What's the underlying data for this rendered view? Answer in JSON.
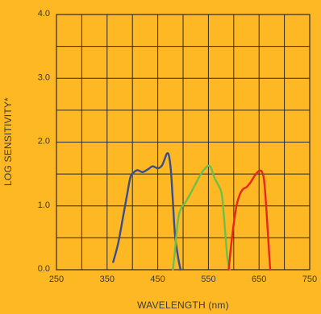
{
  "chart_data": {
    "type": "line",
    "title": "",
    "xlabel": "WAVELENGTH (nm)",
    "ylabel": "LOG SENSITIVITY*",
    "xlim": [
      250,
      750
    ],
    "ylim": [
      0,
      4
    ],
    "x_ticks": [
      "250",
      "350",
      "450",
      "550",
      "650",
      "750"
    ],
    "y_ticks": [
      "0.0",
      "1.0",
      "2.0",
      "3.0",
      "4.0"
    ],
    "grid": true,
    "background_color": "#FDB823",
    "series": [
      {
        "color": "#3B4E8C",
        "points": [
          [
            362,
            0.12
          ],
          [
            372,
            0.42
          ],
          [
            382,
            0.85
          ],
          [
            390,
            1.2
          ],
          [
            396,
            1.45
          ],
          [
            402,
            1.52
          ],
          [
            410,
            1.56
          ],
          [
            420,
            1.53
          ],
          [
            430,
            1.57
          ],
          [
            440,
            1.62
          ],
          [
            450,
            1.59
          ],
          [
            458,
            1.63
          ],
          [
            463,
            1.72
          ],
          [
            468,
            1.82
          ],
          [
            472,
            1.79
          ],
          [
            476,
            1.55
          ],
          [
            480,
            1.05
          ],
          [
            484,
            0.55
          ],
          [
            490,
            0.2
          ],
          [
            495,
            0.0
          ]
        ]
      },
      {
        "color": "#6CC04A",
        "points": [
          [
            480,
            0.0
          ],
          [
            484,
            0.3
          ],
          [
            490,
            0.78
          ],
          [
            496,
            0.96
          ],
          [
            505,
            1.06
          ],
          [
            515,
            1.2
          ],
          [
            525,
            1.35
          ],
          [
            535,
            1.5
          ],
          [
            545,
            1.6
          ],
          [
            550,
            1.63
          ],
          [
            555,
            1.6
          ],
          [
            562,
            1.44
          ],
          [
            570,
            1.32
          ],
          [
            576,
            1.2
          ],
          [
            580,
            0.9
          ],
          [
            584,
            0.5
          ],
          [
            588,
            0.15
          ],
          [
            592,
            0.0
          ]
        ]
      },
      {
        "color": "#E8261C",
        "points": [
          [
            590,
            0.0
          ],
          [
            594,
            0.32
          ],
          [
            600,
            0.72
          ],
          [
            606,
            1.02
          ],
          [
            612,
            1.18
          ],
          [
            618,
            1.26
          ],
          [
            626,
            1.3
          ],
          [
            634,
            1.38
          ],
          [
            642,
            1.48
          ],
          [
            650,
            1.55
          ],
          [
            656,
            1.53
          ],
          [
            660,
            1.4
          ],
          [
            664,
            1.0
          ],
          [
            668,
            0.5
          ],
          [
            672,
            0.0
          ]
        ]
      }
    ]
  }
}
